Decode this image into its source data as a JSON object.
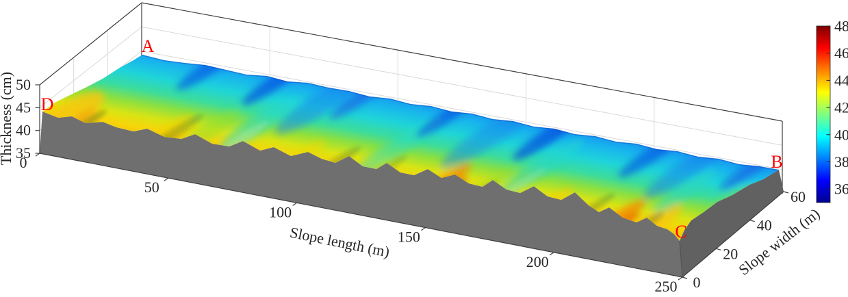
{
  "figure": {
    "kind": "matlab-style 3D surface plot",
    "background": "#ffffff"
  },
  "chart_data": {
    "type": "surface",
    "title": "",
    "x_axis": {
      "label": "Slope length (m)",
      "ticks": [
        0,
        50,
        100,
        150,
        200,
        250
      ],
      "range": [
        0,
        250
      ]
    },
    "y_axis": {
      "label": "Slope width (m)",
      "ticks": [
        0,
        20,
        40,
        60
      ],
      "range": [
        0,
        60
      ]
    },
    "z_axis": {
      "label": "Thickness (cm)",
      "ticks": [
        35,
        40,
        45,
        50
      ],
      "range": [
        35,
        50
      ]
    },
    "colorbar": {
      "ticks": [
        36,
        38,
        40,
        42,
        44,
        46,
        48
      ],
      "range": [
        35,
        48
      ],
      "colormap": "jet",
      "position": "right"
    },
    "grid": true,
    "corner_labels": [
      {
        "text": "A",
        "slope_length_m": 0,
        "slope_width_m": 60,
        "approx_thickness_cm": 39.5
      },
      {
        "text": "B",
        "slope_length_m": 250,
        "slope_width_m": 60,
        "approx_thickness_cm": 39.5
      },
      {
        "text": "C",
        "slope_length_m": 250,
        "slope_width_m": 0,
        "approx_thickness_cm": 42.5
      },
      {
        "text": "D",
        "slope_length_m": 0,
        "slope_width_m": 0,
        "approx_thickness_cm": 44.5
      }
    ],
    "surface_summary": {
      "description": "Rippled thickness surface over a 250 m x 60 m slope slab; thicker (yellow-orange, ~42-45 cm) along the front edge (width 0) and at the left end near D, thinner (blue-cyan, ~36-40 cm) along the back edge (width 60); diagonal ripple bands run parallel to the slope-width direction; grey slab sides shown below the surface",
      "front_edge_thickness_cm": {
        "x_m": [
          0,
          50,
          100,
          150,
          200,
          250
        ],
        "z_cm": [
          44.1,
          42.5,
          42.0,
          41.5,
          42.0,
          42.5
        ]
      },
      "back_edge_thickness_cm": {
        "x_m": [
          0,
          50,
          100,
          150,
          200,
          250
        ],
        "z_cm": [
          39.4,
          39.0,
          38.5,
          38.5,
          39.0,
          39.5
        ]
      }
    },
    "colors": {
      "axis_text": "#262626",
      "corner_label_red": "#ff0000",
      "slab_front_side": "#6f6f6f",
      "slab_right_side": "#616161",
      "colormap_stops_bottom_to_top": [
        "#00008f",
        "#0000ff",
        "#00ffff",
        "#ffff00",
        "#ff0000",
        "#7f0000"
      ]
    }
  }
}
